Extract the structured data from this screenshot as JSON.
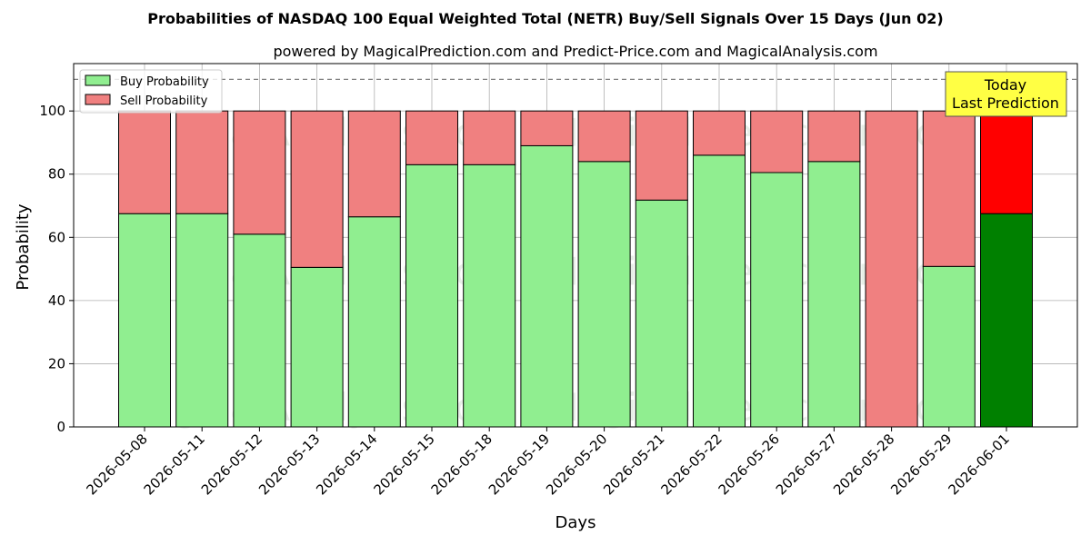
{
  "chart_data": {
    "type": "bar",
    "title": "Probabilities of NASDAQ 100 Equal Weighted Total (NETR) Buy/Sell Signals Over 15 Days (Jun 02)",
    "subtitle": "powered by MagicalPrediction.com and Predict-Price.com and MagicalAnalysis.com",
    "xlabel": "Days",
    "ylabel": "Probability",
    "ylim": [
      0,
      115
    ],
    "yticks": [
      0,
      20,
      40,
      60,
      80,
      100
    ],
    "reference_line": 110,
    "grid": true,
    "legend_position": "top-left",
    "categories": [
      "2026-05-08",
      "2026-05-11",
      "2026-05-12",
      "2026-05-13",
      "2026-05-14",
      "2026-05-15",
      "2026-05-18",
      "2026-05-19",
      "2026-05-20",
      "2026-05-21",
      "2026-05-22",
      "2026-05-26",
      "2026-05-27",
      "2026-05-28",
      "2026-05-29",
      "2026-06-01"
    ],
    "series": [
      {
        "name": "Buy Probability",
        "values": [
          67.5,
          67.5,
          61,
          50.5,
          66.5,
          83,
          83,
          89,
          84,
          71.8,
          86,
          80.5,
          84,
          0,
          50.8,
          67.5
        ]
      },
      {
        "name": "Sell Probability",
        "values": [
          32.5,
          32.5,
          39,
          49.5,
          33.5,
          17,
          17,
          11,
          16,
          28.2,
          14,
          19.5,
          16,
          100,
          49.2,
          32.5
        ]
      }
    ],
    "colors": {
      "buy": "#90ee90",
      "sell": "#f08080",
      "buy_highlight": "#008000",
      "sell_highlight": "#ff0000",
      "annotation_bg": "#ffff44"
    },
    "highlight_index": 15,
    "annotation": {
      "lines": [
        "Today",
        "Last Prediction"
      ]
    },
    "watermarks": [
      "MagicalAnalysis.com",
      "MagicalPrediction.com"
    ]
  }
}
